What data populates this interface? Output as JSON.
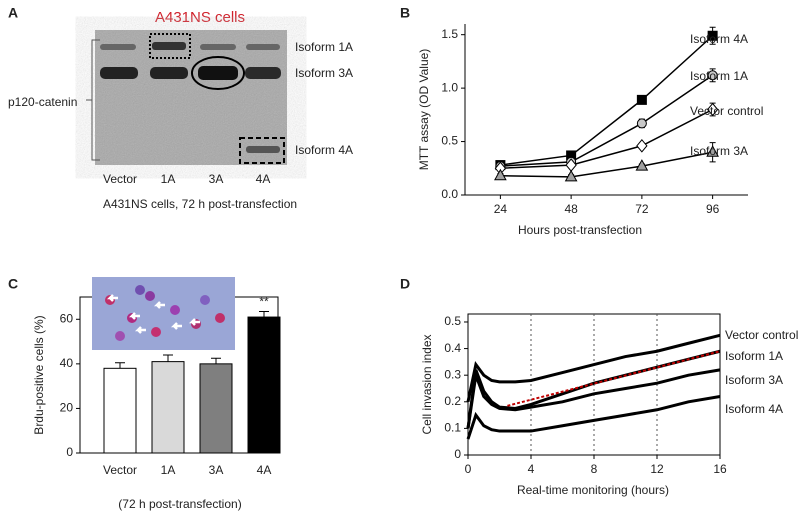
{
  "blot": {
    "panel": "A",
    "title": "A431NS cells",
    "lanes": [
      "Vector",
      "1A",
      "3A",
      "4A"
    ],
    "bands": [
      "Isoform 1A",
      "Isoform 3A",
      "Isoform 4A"
    ],
    "protein": "p120-catenin",
    "caption": "A431NS cells, 72 h post-transfection"
  },
  "chart_data": [
    {
      "type": "line",
      "panel": "B",
      "x_label": "Hours post-transfection",
      "y_label": "MTT assay (OD  Value)",
      "x": [
        24,
        48,
        72,
        96
      ],
      "xlim": [
        12,
        108
      ],
      "xticks": [
        24,
        48,
        72,
        96
      ],
      "ylim": [
        0,
        1.6
      ],
      "yticks": [
        {
          "value": 0,
          "label": "0.0"
        },
        0.5,
        {
          "value": 1,
          "label": "1.0"
        },
        1.5
      ],
      "series": [
        {
          "name": "Isoform 4A",
          "color": "#000000",
          "marker": "square",
          "values": [
            0.28,
            0.37,
            0.89,
            1.49
          ],
          "errors": [
            0.02,
            0.02,
            0.03,
            0.08
          ]
        },
        {
          "name": "Isoform 1A",
          "color": "#c8c8c8",
          "marker": "circle",
          "values": [
            0.27,
            0.31,
            0.67,
            1.12
          ],
          "errors": [
            0.02,
            0.02,
            0.04,
            0.06
          ]
        },
        {
          "name": "Vector control",
          "color": "#ffffff",
          "marker": "diamond",
          "values": [
            0.25,
            0.28,
            0.46,
            0.8
          ],
          "errors": [
            0.02,
            0.02,
            0.02,
            0.06
          ]
        },
        {
          "name": "Isoform 3A",
          "color": "#a0a0a0",
          "marker": "triangle",
          "values": [
            0.18,
            0.17,
            0.27,
            0.4
          ],
          "errors": [
            0.02,
            0.02,
            0.02,
            0.09
          ]
        }
      ]
    },
    {
      "type": "bar",
      "panel": "C",
      "y_label": "Brdu-positive cells (%)",
      "caption": "(72 h post-transfection)",
      "categories": [
        "Vector",
        "1A",
        "3A",
        "4A"
      ],
      "values": [
        38,
        41,
        40,
        61
      ],
      "errors": [
        2.5,
        3,
        2.5,
        2.5
      ],
      "colors": [
        "#ffffff",
        "#d9d9d9",
        "#7f7f7f",
        "#000000"
      ],
      "annotation": {
        "text": "**",
        "category": "4A"
      },
      "ylim": [
        0,
        70
      ],
      "yticks": [
        0,
        20,
        40,
        60
      ]
    },
    {
      "type": "line",
      "panel": "D",
      "x_label": "Real-time monitoring (hours)",
      "y_label": "Cell invasion index",
      "x": [
        0,
        0.5,
        1,
        1.5,
        2,
        3,
        4,
        6,
        8,
        10,
        12,
        14,
        16
      ],
      "xlim": [
        0,
        16
      ],
      "xticks": [
        0,
        4,
        8,
        12,
        16
      ],
      "ylim": [
        0,
        0.53
      ],
      "yticks": [
        0,
        0.1,
        0.2,
        0.3,
        0.4,
        0.5
      ],
      "grid_x": true,
      "series": [
        {
          "name": "Vector control",
          "color": "#000000",
          "values": [
            0.2,
            0.34,
            0.3,
            0.28,
            0.275,
            0.275,
            0.28,
            0.31,
            0.34,
            0.37,
            0.39,
            0.42,
            0.45
          ]
        },
        {
          "name": "Isoform 1A",
          "color": "#000000",
          "values": [
            0.1,
            0.32,
            0.24,
            0.2,
            0.18,
            0.175,
            0.19,
            0.23,
            0.27,
            0.3,
            0.33,
            0.36,
            0.39
          ]
        },
        {
          "name": "Isoform 3A",
          "color": "#000000",
          "values": [
            0.1,
            0.3,
            0.22,
            0.19,
            0.175,
            0.17,
            0.18,
            0.2,
            0.23,
            0.25,
            0.27,
            0.3,
            0.32
          ]
        },
        {
          "name": "Isoform 4A",
          "color": "#000000",
          "values": [
            0.06,
            0.15,
            0.11,
            0.095,
            0.09,
            0.09,
            0.09,
            0.11,
            0.13,
            0.15,
            0.17,
            0.2,
            0.22
          ]
        }
      ],
      "trend": {
        "color": "#c00000",
        "x": [
          2.5,
          16
        ],
        "values": [
          0.185,
          0.39
        ]
      }
    }
  ]
}
